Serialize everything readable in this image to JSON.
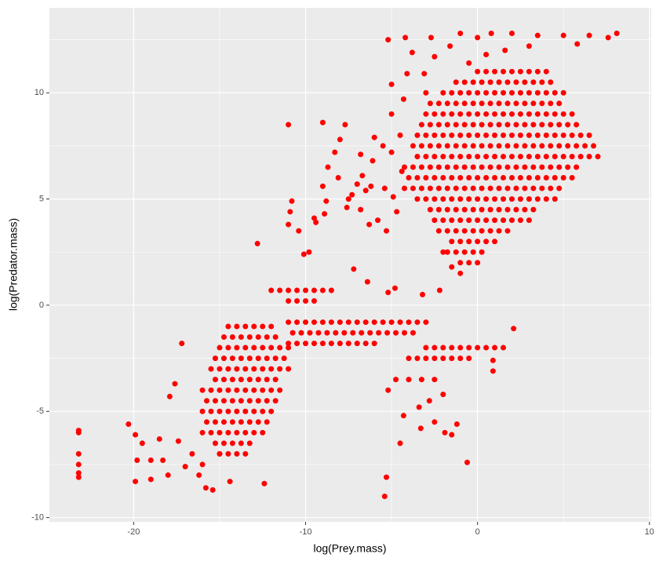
{
  "chart_data": {
    "type": "scatter",
    "x_label": "log(Prey.mass)",
    "y_label": "log(Predator.mass)",
    "xlim": [
      -24.9,
      10.1
    ],
    "ylim": [
      -10.2,
      14.0
    ],
    "xticks": [
      -20,
      -10,
      0,
      10
    ],
    "yticks": [
      -10,
      -5,
      0,
      5,
      10
    ],
    "x_minor_ticks": [
      -15,
      -5,
      5
    ],
    "y_minor_ticks": [
      -7.5,
      -2.5,
      2.5,
      7.5,
      12.5
    ],
    "grid": true,
    "color": "#ff0000",
    "x": [
      -23.2,
      -23.2,
      -23.2,
      -23.2,
      -23.2,
      -23.2,
      -20.3,
      -19.9,
      -19.5,
      -19.8,
      -19.9,
      -19.0,
      -19.0,
      -18.3,
      -18.0,
      -18.5,
      -17.9,
      -17.6,
      -17.2,
      -17.4,
      -17.0,
      -16.6,
      -16.2,
      -16.0,
      -15.8,
      -15.4,
      -15.0,
      -14.4,
      -12.4,
      -12.8,
      -11.0,
      -10.8,
      -10.9,
      -11.0,
      -10.4,
      -10.1,
      -9.8,
      -9.5,
      -9.0,
      -9.4,
      -8.9,
      -8.8,
      -9.0,
      -8.7,
      -8.3,
      -8.1,
      -8.0,
      -7.7,
      -7.5,
      -7.3,
      -7.0,
      -7.6,
      -7.2,
      -6.8,
      -6.7,
      -6.8,
      -6.5,
      -6.3,
      -6.2,
      -6.0,
      -6.1,
      -6.4,
      -5.8,
      -5.5,
      -5.4,
      -5.3,
      -5.0,
      -4.9,
      -4.5,
      -4.7,
      -4.4,
      -5.2,
      -4.8,
      -3.2,
      -2.2,
      -2.0,
      -1.5,
      -1.0,
      -5.2,
      -4.2,
      -3.8,
      -2.7,
      -2.5,
      -1.6,
      -1.0,
      0.0,
      0.8,
      2.0,
      3.5,
      5.0,
      6.5,
      7.6,
      8.1,
      5.8,
      3.0,
      1.6,
      0.5,
      -0.5,
      -5.0,
      -4.1,
      -3.1,
      -3.0,
      -4.3,
      -5.0,
      -5.2,
      -4.3,
      -2.8,
      -1.9,
      -1.2,
      0.9,
      2.1,
      -1.5,
      -0.6,
      0.9,
      -3.4,
      -2.5,
      -2.0,
      -5.4,
      -5.3,
      -4.5,
      -3.3,
      0,
      0.5,
      1,
      1.5,
      2,
      2.5,
      3,
      3.5,
      4,
      -1.25,
      -0.75,
      -0.25,
      0.25,
      0.75,
      1.25,
      1.75,
      2.25,
      2.75,
      3.25,
      3.75,
      4.25,
      -2,
      -1.5,
      -1,
      -0.5,
      0,
      0.5,
      1,
      1.5,
      2,
      2.5,
      3,
      3.5,
      4,
      4.5,
      5,
      -2.75,
      -2.25,
      -1.75,
      -1.25,
      -0.75,
      -0.25,
      0.25,
      0.75,
      1.25,
      1.75,
      2.25,
      2.75,
      3.25,
      3.75,
      4.25,
      4.75,
      -3,
      -2.5,
      -2,
      -1.5,
      -1,
      -0.5,
      0,
      0.5,
      1,
      1.5,
      2,
      2.5,
      3,
      3.5,
      4,
      4.5,
      5,
      5.5,
      -3.25,
      -2.75,
      -2.25,
      -1.75,
      -1.25,
      -0.75,
      -0.25,
      0.25,
      0.75,
      1.25,
      1.75,
      2.25,
      2.75,
      3.25,
      3.75,
      4.25,
      4.75,
      5.25,
      5.75,
      -3.5,
      -3,
      -2.5,
      -2,
      -1.5,
      -1,
      -0.5,
      0,
      0.5,
      1,
      1.5,
      2,
      2.5,
      3,
      3.5,
      4,
      4.5,
      5,
      5.5,
      6,
      6.5,
      -3.75,
      -3.25,
      -2.75,
      -2.25,
      -1.75,
      -1.25,
      -0.75,
      -0.25,
      0.25,
      0.75,
      1.25,
      1.75,
      2.25,
      2.75,
      3.25,
      3.75,
      4.25,
      4.75,
      5.25,
      5.75,
      6.25,
      6.75,
      -3.5,
      -3,
      -2.5,
      -2,
      -1.5,
      -1,
      -0.5,
      0,
      0.5,
      1,
      1.5,
      2,
      2.5,
      3,
      3.5,
      4,
      4.5,
      5,
      5.5,
      6,
      6.5,
      7,
      -4.25,
      -3.75,
      -3.25,
      -2.75,
      -2.25,
      -1.75,
      -1.25,
      -0.75,
      -0.25,
      0.25,
      0.75,
      1.25,
      1.75,
      2.25,
      2.75,
      3.25,
      3.75,
      4.25,
      4.75,
      5.25,
      5.75,
      -4,
      -3.5,
      -3,
      -2.5,
      -2,
      -1.5,
      -1,
      -0.5,
      0,
      0.5,
      1,
      1.5,
      2,
      2.5,
      3,
      3.5,
      4,
      4.5,
      5,
      5.5,
      -4.25,
      -3.75,
      -3.25,
      -2.75,
      -2.25,
      -1.75,
      -1.25,
      -0.75,
      -0.25,
      0.25,
      0.75,
      1.25,
      1.75,
      2.25,
      2.75,
      3.25,
      3.75,
      4.25,
      4.75,
      -3.5,
      -3,
      -2.5,
      -2,
      -1.5,
      -1,
      -0.5,
      0,
      0.5,
      1,
      1.5,
      2,
      2.5,
      3,
      3.5,
      4,
      4.5,
      -2.75,
      -2.25,
      -1.75,
      -1.25,
      -0.75,
      -0.25,
      0.25,
      0.75,
      1.25,
      1.75,
      2.25,
      2.75,
      3.25,
      -2.5,
      -2,
      -1.5,
      -1,
      -0.5,
      0,
      0.5,
      1,
      1.5,
      2,
      2.5,
      3,
      -2.25,
      -1.75,
      -1.25,
      -0.75,
      -0.25,
      0.25,
      0.75,
      1.25,
      1.75,
      -1.5,
      -1,
      -0.5,
      0,
      0.5,
      1,
      -1.75,
      -1.25,
      -0.75,
      -0.25,
      0.25,
      -1,
      -0.5,
      0,
      -14.5,
      -14,
      -13.5,
      -13,
      -12.5,
      -12,
      -14.75,
      -14.25,
      -13.75,
      -13.25,
      -12.75,
      -12.25,
      -11.75,
      -15,
      -14.5,
      -14,
      -13.5,
      -13,
      -12.5,
      -12,
      -11.5,
      -11,
      -15.25,
      -14.75,
      -14.25,
      -13.75,
      -13.25,
      -12.75,
      -12.25,
      -11.75,
      -11.25,
      -15.5,
      -15,
      -14.5,
      -14,
      -13.5,
      -13,
      -12.5,
      -12,
      -11.5,
      -11,
      -15.25,
      -14.75,
      -14.25,
      -13.75,
      -13.25,
      -12.75,
      -12.25,
      -11.75,
      -16,
      -15.5,
      -15,
      -14.5,
      -14,
      -13.5,
      -13,
      -12.5,
      -12,
      -11.5,
      -15.75,
      -15.25,
      -14.75,
      -14.25,
      -13.75,
      -13.25,
      -12.75,
      -12.25,
      -11.75,
      -16,
      -15.5,
      -15,
      -14.5,
      -14,
      -13.5,
      -13,
      -12.5,
      -12,
      -15.75,
      -15.25,
      -14.75,
      -14.25,
      -13.75,
      -13.25,
      -12.75,
      -12.25,
      -16,
      -15.5,
      -15,
      -14.5,
      -14,
      -13.5,
      -13,
      -12.5,
      -15.25,
      -14.75,
      -14.25,
      -13.75,
      -13.25,
      -15,
      -14.5,
      -14,
      -13.5,
      -11,
      -10.5,
      -10,
      -9.5,
      -9,
      -8.5,
      -8,
      -7.5,
      -7,
      -6.5,
      -6,
      -5.5,
      -5,
      -4.5,
      -4,
      -3.5,
      -3,
      -10.75,
      -10.25,
      -9.75,
      -9.25,
      -8.75,
      -8.25,
      -7.75,
      -7.25,
      -6.75,
      -6.25,
      -5.75,
      -5.25,
      -4.75,
      -4.25,
      -3.75,
      -11,
      -10.5,
      -10,
      -9.5,
      -9,
      -8.5,
      -8,
      -7.5,
      -7,
      -6.5,
      -6,
      -12,
      -11.5,
      -11,
      -10.5,
      -10,
      -9.5,
      -9,
      -8.5,
      -11,
      -10.5,
      -10,
      -9.5,
      -3,
      -2.5,
      -2,
      -1.5,
      -1,
      -0.5,
      0,
      0.5,
      1,
      1.5,
      -4,
      -3.5,
      -3,
      -2.5,
      -2,
      -1.5,
      -1,
      -0.5,
      -4.75,
      -4,
      -3.25,
      -2.5
    ],
    "values": [
      -5.9,
      -6.0,
      -7.0,
      -7.5,
      -7.9,
      -8.1,
      -5.6,
      -6.1,
      -6.5,
      -7.3,
      -8.3,
      -7.3,
      -8.2,
      -7.3,
      -8.0,
      -6.3,
      -4.3,
      -3.7,
      -1.8,
      -6.4,
      -7.6,
      -7.0,
      -8.0,
      -7.5,
      -8.6,
      -8.7,
      -7.0,
      -8.3,
      -8.4,
      2.9,
      8.5,
      4.9,
      4.4,
      3.8,
      3.5,
      2.4,
      2.5,
      4.1,
      8.6,
      3.9,
      4.3,
      4.9,
      5.6,
      6.5,
      7.2,
      6.0,
      7.8,
      8.5,
      5.0,
      5.2,
      5.7,
      4.6,
      1.7,
      7.1,
      6.1,
      4.5,
      5.4,
      3.8,
      5.6,
      7.9,
      6.8,
      1.1,
      4.0,
      7.5,
      5.5,
      3.5,
      7.2,
      5.1,
      8.0,
      4.4,
      6.3,
      0.6,
      0.8,
      0.5,
      0.7,
      2.5,
      1.8,
      1.5,
      12.5,
      12.6,
      11.9,
      12.6,
      11.7,
      12.2,
      12.8,
      12.6,
      12.8,
      12.8,
      12.7,
      12.7,
      12.7,
      12.6,
      12.8,
      12.3,
      12.2,
      12.0,
      11.8,
      11.4,
      10.4,
      10.9,
      10.9,
      10.0,
      9.7,
      9.0,
      -4.0,
      -5.2,
      -4.5,
      -6.0,
      -5.6,
      -3.1,
      -1.1,
      -6.1,
      -7.4,
      -2.6,
      -4.8,
      -5.5,
      -4.2,
      -9.0,
      -8.1,
      -6.5,
      -5.8,
      11,
      11,
      11,
      11,
      11,
      11,
      11,
      11,
      11,
      10.5,
      10.5,
      10.5,
      10.5,
      10.5,
      10.5,
      10.5,
      10.5,
      10.5,
      10.5,
      10.5,
      10.5,
      10,
      10,
      10,
      10,
      10,
      10,
      10,
      10,
      10,
      10,
      10,
      10,
      10,
      10,
      10,
      9.5,
      9.5,
      9.5,
      9.5,
      9.5,
      9.5,
      9.5,
      9.5,
      9.5,
      9.5,
      9.5,
      9.5,
      9.5,
      9.5,
      9.5,
      9.5,
      9,
      9,
      9,
      9,
      9,
      9,
      9,
      9,
      9,
      9,
      9,
      9,
      9,
      9,
      9,
      9,
      9,
      9,
      8.5,
      8.5,
      8.5,
      8.5,
      8.5,
      8.5,
      8.5,
      8.5,
      8.5,
      8.5,
      8.5,
      8.5,
      8.5,
      8.5,
      8.5,
      8.5,
      8.5,
      8.5,
      8.5,
      8,
      8,
      8,
      8,
      8,
      8,
      8,
      8,
      8,
      8,
      8,
      8,
      8,
      8,
      8,
      8,
      8,
      8,
      8,
      8,
      8,
      7.5,
      7.5,
      7.5,
      7.5,
      7.5,
      7.5,
      7.5,
      7.5,
      7.5,
      7.5,
      7.5,
      7.5,
      7.5,
      7.5,
      7.5,
      7.5,
      7.5,
      7.5,
      7.5,
      7.5,
      7.5,
      7.5,
      7,
      7,
      7,
      7,
      7,
      7,
      7,
      7,
      7,
      7,
      7,
      7,
      7,
      7,
      7,
      7,
      7,
      7,
      7,
      7,
      7,
      7,
      6.5,
      6.5,
      6.5,
      6.5,
      6.5,
      6.5,
      6.5,
      6.5,
      6.5,
      6.5,
      6.5,
      6.5,
      6.5,
      6.5,
      6.5,
      6.5,
      6.5,
      6.5,
      6.5,
      6.5,
      6.5,
      6,
      6,
      6,
      6,
      6,
      6,
      6,
      6,
      6,
      6,
      6,
      6,
      6,
      6,
      6,
      6,
      6,
      6,
      6,
      6,
      5.5,
      5.5,
      5.5,
      5.5,
      5.5,
      5.5,
      5.5,
      5.5,
      5.5,
      5.5,
      5.5,
      5.5,
      5.5,
      5.5,
      5.5,
      5.5,
      5.5,
      5.5,
      5.5,
      5,
      5,
      5,
      5,
      5,
      5,
      5,
      5,
      5,
      5,
      5,
      5,
      5,
      5,
      5,
      5,
      5,
      4.5,
      4.5,
      4.5,
      4.5,
      4.5,
      4.5,
      4.5,
      4.5,
      4.5,
      4.5,
      4.5,
      4.5,
      4.5,
      4,
      4,
      4,
      4,
      4,
      4,
      4,
      4,
      4,
      4,
      4,
      4,
      3.5,
      3.5,
      3.5,
      3.5,
      3.5,
      3.5,
      3.5,
      3.5,
      3.5,
      3,
      3,
      3,
      3,
      3,
      3,
      2.5,
      2.5,
      2.5,
      2.5,
      2.5,
      2,
      2,
      2,
      -1,
      -1,
      -1,
      -1,
      -1,
      -1,
      -1.5,
      -1.5,
      -1.5,
      -1.5,
      -1.5,
      -1.5,
      -1.5,
      -2,
      -2,
      -2,
      -2,
      -2,
      -2,
      -2,
      -2,
      -2,
      -2.5,
      -2.5,
      -2.5,
      -2.5,
      -2.5,
      -2.5,
      -2.5,
      -2.5,
      -2.5,
      -3,
      -3,
      -3,
      -3,
      -3,
      -3,
      -3,
      -3,
      -3,
      -3,
      -3.5,
      -3.5,
      -3.5,
      -3.5,
      -3.5,
      -3.5,
      -3.5,
      -3.5,
      -4,
      -4,
      -4,
      -4,
      -4,
      -4,
      -4,
      -4,
      -4,
      -4,
      -4.5,
      -4.5,
      -4.5,
      -4.5,
      -4.5,
      -4.5,
      -4.5,
      -4.5,
      -4.5,
      -5,
      -5,
      -5,
      -5,
      -5,
      -5,
      -5,
      -5,
      -5,
      -5.5,
      -5.5,
      -5.5,
      -5.5,
      -5.5,
      -5.5,
      -5.5,
      -5.5,
      -6,
      -6,
      -6,
      -6,
      -6,
      -6,
      -6,
      -6,
      -6.5,
      -6.5,
      -6.5,
      -6.5,
      -6.5,
      -7,
      -7,
      -7,
      -7,
      -0.8,
      -0.8,
      -0.8,
      -0.8,
      -0.8,
      -0.8,
      -0.8,
      -0.8,
      -0.8,
      -0.8,
      -0.8,
      -0.8,
      -0.8,
      -0.8,
      -0.8,
      -0.8,
      -0.8,
      -1.3,
      -1.3,
      -1.3,
      -1.3,
      -1.3,
      -1.3,
      -1.3,
      -1.3,
      -1.3,
      -1.3,
      -1.3,
      -1.3,
      -1.3,
      -1.3,
      -1.3,
      -1.8,
      -1.8,
      -1.8,
      -1.8,
      -1.8,
      -1.8,
      -1.8,
      -1.8,
      -1.8,
      -1.8,
      -1.8,
      0.7,
      0.7,
      0.7,
      0.7,
      0.7,
      0.7,
      0.7,
      0.7,
      0.2,
      0.2,
      0.2,
      0.2,
      -2,
      -2,
      -2,
      -2,
      -2,
      -2,
      -2,
      -2,
      -2,
      -2,
      -2.5,
      -2.5,
      -2.5,
      -2.5,
      -2.5,
      -2.5,
      -2.5,
      -2.5,
      -3.5,
      -3.5,
      -3.5,
      -3.5
    ]
  }
}
